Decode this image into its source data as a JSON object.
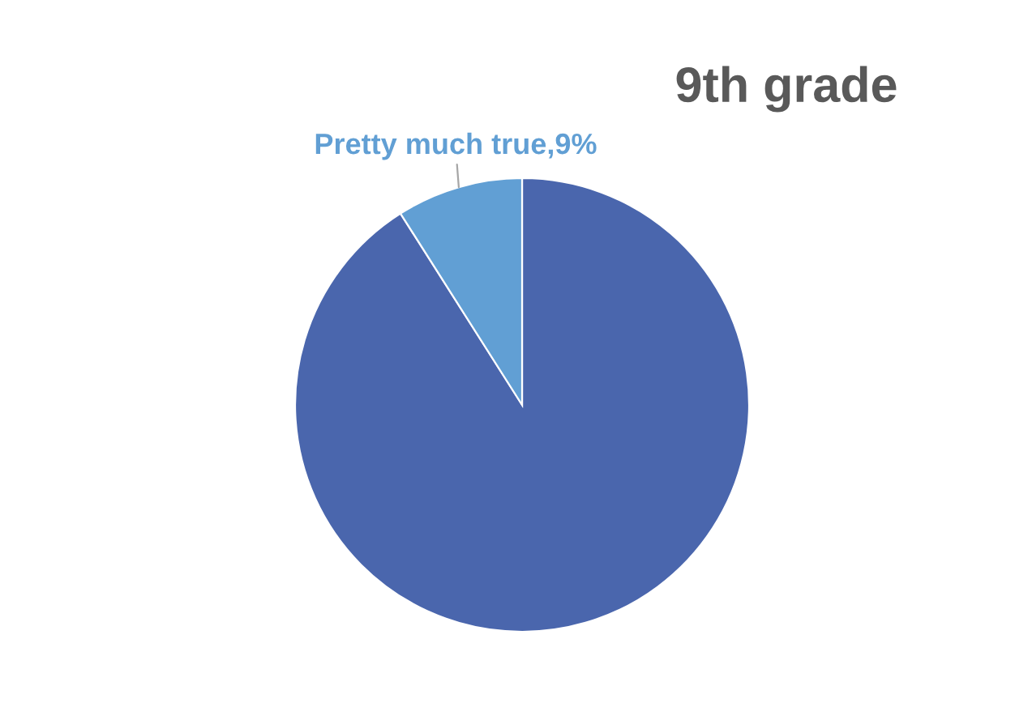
{
  "chart_data": {
    "type": "pie",
    "title": "9th grade",
    "categories": [
      null,
      "Pretty much true"
    ],
    "values": [
      91,
      9
    ],
    "colors": [
      "#4a66ad",
      "#619fd4"
    ],
    "value_labels": [
      null,
      "9%"
    ],
    "legend": false
  }
}
